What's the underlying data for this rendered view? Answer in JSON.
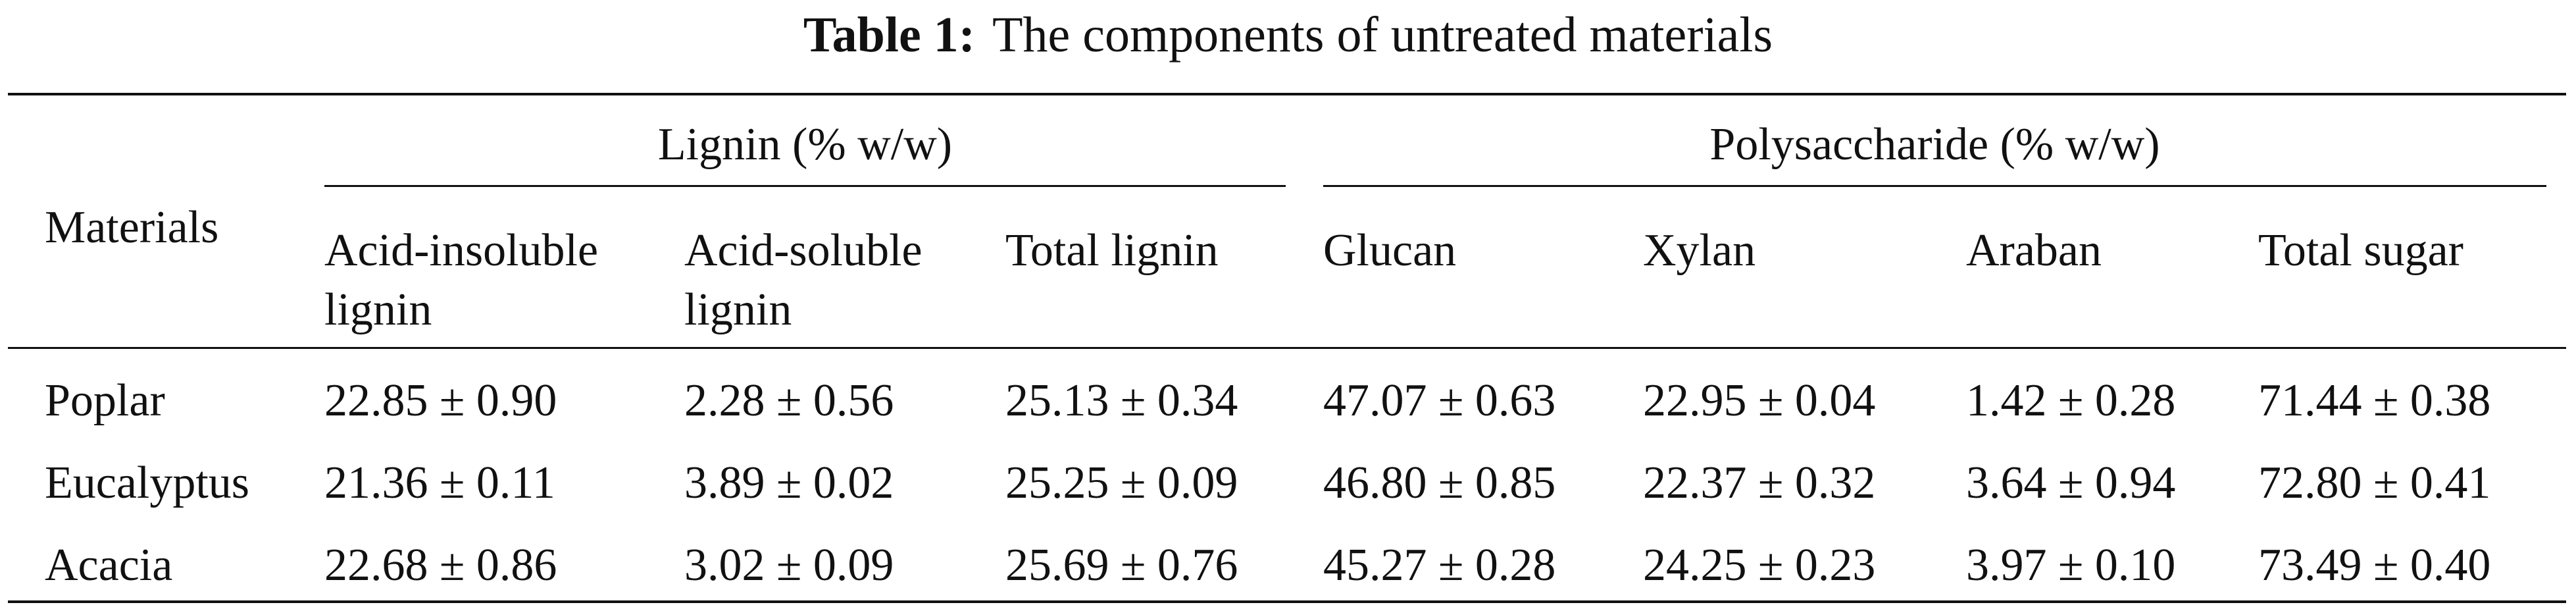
{
  "title": {
    "label": "Table 1:",
    "text": "The components of untreated materials"
  },
  "table": {
    "row_header": "Materials",
    "groups": [
      "Lignin (% w/w)",
      "Polysaccharide (% w/w)"
    ],
    "columns": [
      "Acid-insoluble lignin",
      "Acid-soluble lignin",
      "Total lignin",
      "Glucan",
      "Xylan",
      "Araban",
      "Total sugar"
    ],
    "rows": [
      [
        "Poplar",
        "22.85 ± 0.90",
        "2.28 ± 0.56",
        "25.13 ± 0.34",
        "47.07 ± 0.63",
        "22.95 ± 0.04",
        "1.42 ± 0.28",
        "71.44 ± 0.38"
      ],
      [
        "Eucalyptus",
        "21.36 ± 0.11",
        "3.89 ± 0.02",
        "25.25 ± 0.09",
        "46.80 ± 0.85",
        "22.37 ± 0.32",
        "3.64 ± 0.94",
        "72.80 ± 0.41"
      ],
      [
        "Acacia",
        "22.68 ± 0.86",
        "3.02 ± 0.09",
        "25.69 ± 0.76",
        "45.27 ± 0.28",
        "24.25 ± 0.23",
        "3.97 ± 0.10",
        "73.49 ± 0.40"
      ]
    ]
  }
}
